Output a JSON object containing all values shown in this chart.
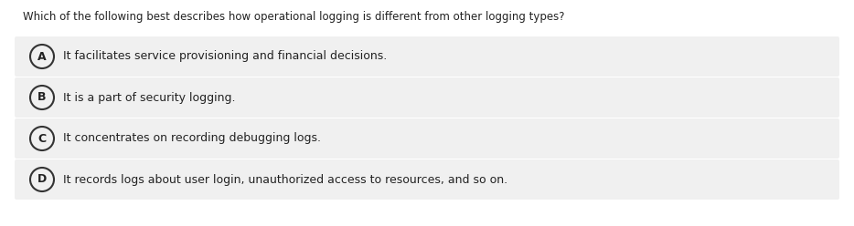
{
  "question": "Which of the following best describes how operational logging is different from other logging types?",
  "options": [
    {
      "label": "A",
      "text": "It facilitates service provisioning and financial decisions."
    },
    {
      "label": "B",
      "text": "It is a part of security logging."
    },
    {
      "label": "C",
      "text": "It concentrates on recording debugging logs."
    },
    {
      "label": "D",
      "text": "It records logs about user login, unauthorized access to resources, and so on."
    }
  ],
  "bg_color": "#ffffff",
  "option_bg_color": "#f0f0f0",
  "text_color": "#222222",
  "circle_edge_color": "#333333",
  "question_fontsize": 8.5,
  "option_fontsize": 9.0,
  "label_fontsize": 9.0,
  "fig_width": 9.34,
  "fig_height": 2.48,
  "dpi": 100
}
